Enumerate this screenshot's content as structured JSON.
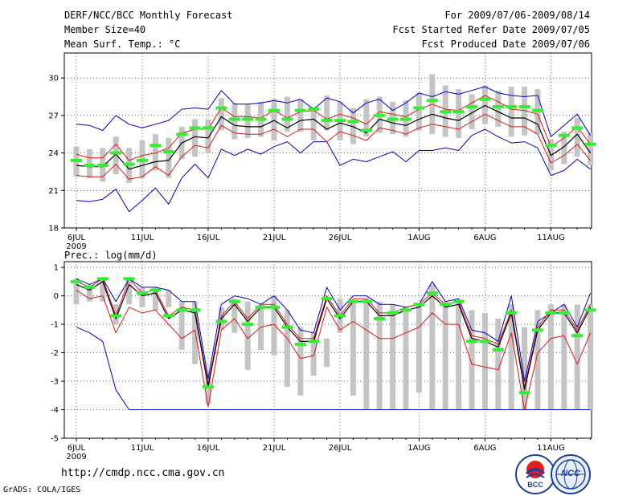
{
  "header": {
    "title": "DERF/NCC/BCC Monthly Forecast",
    "member_size": "Member Size=40",
    "variable": "Mean Surf. Temp.: °C",
    "period": "For 2009/07/06-2009/08/14",
    "started": "Fcst Started Refer Date 2009/07/05",
    "produced": "Fcst Produced Date 2009/07/06"
  },
  "lower_title": "Prec.: log(mm/d)",
  "url": "http://cmdp.ncc.cma.gov.cn",
  "credit": "GrADS: COLA/IGES",
  "logos": {
    "bcc": "BCC",
    "ncc": "NCC"
  },
  "colors": {
    "bar": "#c4c4c4",
    "green": "#33ee33",
    "mean": "#000000",
    "red": "#d81818",
    "blue": "#0000c8"
  },
  "chart_data": [
    {
      "type": "line",
      "title": "Mean Surf. Temp.: °C",
      "xlabel": "",
      "ylabel": "°C",
      "ylim": [
        18,
        32
      ],
      "yticks": [
        18,
        21,
        24,
        27,
        30
      ],
      "x": [
        1,
        2,
        3,
        4,
        5,
        6,
        7,
        8,
        9,
        10,
        11,
        12,
        13,
        14,
        15,
        16,
        17,
        18,
        19,
        20,
        21,
        22,
        23,
        24,
        25,
        26,
        27,
        28,
        29,
        30,
        31,
        32,
        33,
        34,
        35,
        36,
        37,
        38,
        39,
        40
      ],
      "xticks": [
        {
          "day": 1,
          "label": "6JUL",
          "sub": "2009"
        },
        {
          "day": 6,
          "label": "11JUL"
        },
        {
          "day": 11,
          "label": "16JUL"
        },
        {
          "day": 16,
          "label": "21JUL"
        },
        {
          "day": 21,
          "label": "26JUL"
        },
        {
          "day": 27,
          "label": "1AUG"
        },
        {
          "day": 32,
          "label": "6AUG"
        },
        {
          "day": 37,
          "label": "11AUG"
        }
      ],
      "series": [
        {
          "name": "box_low",
          "values": [
            22.1,
            22.0,
            21.7,
            22.3,
            21.6,
            22.0,
            22.6,
            22.0,
            23.5,
            23.7,
            24.0,
            25.8,
            25.1,
            25.2,
            25.3,
            25.0,
            25.7,
            25.7,
            25.0,
            25.8,
            25.0,
            24.7,
            25.3,
            25.6,
            25.5,
            25.3,
            25.8,
            25.5,
            25.3,
            25.2,
            25.9,
            26.3,
            26.1,
            25.3,
            25.4,
            25.5,
            22.6,
            23.1,
            23.7,
            23.0
          ]
        },
        {
          "name": "box_high",
          "values": [
            24.5,
            24.3,
            24.4,
            25.3,
            24.4,
            25.0,
            25.5,
            25.2,
            26.1,
            26.7,
            26.7,
            28.4,
            28.0,
            27.9,
            28.1,
            28.3,
            28.5,
            28.3,
            27.7,
            28.6,
            28.1,
            27.6,
            28.3,
            28.5,
            28.1,
            28.2,
            28.8,
            30.3,
            29.4,
            29.1,
            28.7,
            29.4,
            29.0,
            29.3,
            29.3,
            29.1,
            25.1,
            25.7,
            26.8,
            25.6
          ]
        },
        {
          "name": "observed",
          "values": [
            23.4,
            23.0,
            23.0,
            24.0,
            23.1,
            23.4,
            24.6,
            24.1,
            25.5,
            26.0,
            26.0,
            27.6,
            26.7,
            26.7,
            26.7,
            27.4,
            26.7,
            27.4,
            27.5,
            26.6,
            26.6,
            26.5,
            25.8,
            27.0,
            26.7,
            26.7,
            27.6,
            28.2,
            27.3,
            27.3,
            27.7,
            28.3,
            27.7,
            27.7,
            27.7,
            27.4,
            24.6,
            25.4,
            26.0,
            24.7
          ]
        },
        {
          "name": "ensemble_mean",
          "values": [
            23.0,
            22.9,
            22.9,
            23.9,
            22.7,
            23.0,
            23.3,
            23.4,
            24.8,
            25.3,
            25.2,
            26.9,
            26.2,
            26.1,
            26.1,
            26.6,
            26.0,
            26.6,
            26.7,
            25.9,
            26.4,
            26.1,
            25.6,
            26.7,
            26.4,
            26.2,
            26.7,
            27.1,
            26.8,
            26.6,
            27.2,
            27.8,
            27.3,
            26.8,
            26.8,
            26.3,
            23.8,
            24.5,
            25.5,
            24.0
          ]
        },
        {
          "name": "red_upper",
          "values": [
            23.9,
            23.6,
            23.6,
            24.7,
            23.4,
            23.8,
            24.0,
            24.4,
            25.6,
            25.9,
            25.9,
            27.6,
            26.9,
            26.9,
            26.8,
            27.4,
            26.8,
            27.3,
            27.4,
            26.7,
            27.1,
            26.8,
            26.3,
            27.3,
            27.1,
            26.9,
            27.5,
            27.9,
            27.5,
            27.4,
            28.0,
            28.6,
            28.1,
            27.5,
            27.4,
            27.1,
            24.5,
            25.2,
            26.1,
            24.7
          ]
        },
        {
          "name": "red_lower",
          "values": [
            22.2,
            22.1,
            22.1,
            23.1,
            21.9,
            22.1,
            22.9,
            22.2,
            23.7,
            24.6,
            24.4,
            26.2,
            25.6,
            25.5,
            25.5,
            25.9,
            25.3,
            25.9,
            25.9,
            24.9,
            25.7,
            25.4,
            25.0,
            26.0,
            25.8,
            25.5,
            26.0,
            26.3,
            26.1,
            25.9,
            26.5,
            27.1,
            26.6,
            26.1,
            26.1,
            25.5,
            23.2,
            23.8,
            24.7,
            23.4
          ]
        },
        {
          "name": "blue_max",
          "values": [
            26.3,
            26.2,
            25.8,
            27.0,
            26.3,
            26.0,
            26.3,
            26.6,
            27.5,
            27.6,
            27.5,
            29.0,
            27.9,
            27.9,
            28.0,
            28.2,
            28.0,
            28.3,
            27.5,
            28.4,
            28.1,
            27.2,
            28.0,
            28.3,
            27.4,
            28.0,
            28.8,
            28.5,
            28.9,
            28.7,
            29.0,
            29.3,
            28.8,
            28.6,
            28.5,
            28.6,
            25.3,
            26.2,
            27.1,
            25.4
          ]
        },
        {
          "name": "blue_min",
          "values": [
            20.2,
            20.1,
            20.3,
            21.1,
            19.3,
            20.2,
            21.2,
            19.9,
            22.0,
            23.1,
            22.0,
            24.3,
            23.8,
            24.3,
            23.9,
            24.5,
            24.9,
            24.0,
            24.9,
            24.9,
            23.0,
            23.5,
            23.3,
            23.7,
            24.1,
            23.3,
            24.2,
            24.2,
            24.4,
            24.2,
            25.4,
            25.9,
            25.3,
            24.8,
            24.9,
            24.4,
            22.2,
            22.6,
            23.5,
            22.7
          ]
        }
      ]
    },
    {
      "type": "line",
      "title": "Prec.: log(mm/d)",
      "xlabel": "",
      "ylabel": "log(mm/d)",
      "ylim": [
        -5,
        1.2
      ],
      "yticks": [
        -5,
        -4,
        -3,
        -2,
        -1,
        0,
        1
      ],
      "x": [
        1,
        2,
        3,
        4,
        5,
        6,
        7,
        8,
        9,
        10,
        11,
        12,
        13,
        14,
        15,
        16,
        17,
        18,
        19,
        20,
        21,
        22,
        23,
        24,
        25,
        26,
        27,
        28,
        29,
        30,
        31,
        32,
        33,
        34,
        35,
        36,
        37,
        38,
        39,
        40
      ],
      "xticks": [
        {
          "day": 1,
          "label": "6JUL",
          "sub": "2009"
        },
        {
          "day": 6,
          "label": "11JUL"
        },
        {
          "day": 11,
          "label": "16JUL"
        },
        {
          "day": 16,
          "label": "21JUL"
        },
        {
          "day": 21,
          "label": "26JUL"
        },
        {
          "day": 27,
          "label": "1AUG"
        },
        {
          "day": 32,
          "label": "6AUG"
        },
        {
          "day": 37,
          "label": "11AUG"
        }
      ],
      "series": [
        {
          "name": "box_low",
          "values": [
            -0.3,
            -0.2,
            -0.2,
            -1.0,
            -0.3,
            -0.4,
            -0.5,
            -0.4,
            -1.9,
            -2.4,
            -3.8,
            -1.2,
            -1.3,
            -2.6,
            -1.9,
            -2.1,
            -3.2,
            -3.5,
            -2.8,
            -2.5,
            -1.3,
            -3.5,
            -4.0,
            -4.0,
            -4.0,
            -4.0,
            -3.4,
            -4.0,
            -4.0,
            -4.0,
            -4.0,
            -4.0,
            -4.0,
            -4.0,
            -4.0,
            -4.0,
            -4.0,
            -4.0,
            -4.0,
            -4.0
          ]
        },
        {
          "name": "box_high",
          "values": [
            0.6,
            0.4,
            0.6,
            -0.3,
            0.6,
            0.3,
            0.3,
            0.2,
            -0.2,
            -0.2,
            -2.7,
            -0.4,
            -0.1,
            -0.2,
            -0.3,
            0.0,
            -0.5,
            -1.1,
            -1.3,
            -1.5,
            -0.1,
            -0.2,
            -0.1,
            -0.2,
            -0.3,
            -0.4,
            -0.3,
            0.4,
            -0.2,
            -0.2,
            -0.5,
            -0.6,
            -0.8,
            -0.3,
            -1.1,
            -0.5,
            -0.3,
            -0.3,
            -0.3,
            -0.3
          ]
        },
        {
          "name": "observed",
          "values": [
            0.5,
            0.3,
            0.6,
            -0.7,
            0.6,
            0.1,
            0.2,
            -0.7,
            -0.5,
            -0.5,
            -3.2,
            -0.9,
            -0.2,
            -1.0,
            -0.4,
            -0.4,
            -1.1,
            -1.7,
            -1.6,
            -0.1,
            -0.7,
            -0.2,
            -0.2,
            -0.8,
            -0.6,
            -0.5,
            -0.3,
            0.1,
            -0.3,
            -0.2,
            -1.6,
            -1.6,
            -1.9,
            -0.6,
            -3.4,
            -1.2,
            -0.6,
            -0.6,
            -1.4,
            -0.5
          ]
        },
        {
          "name": "ensemble_mean",
          "values": [
            0.4,
            0.2,
            0.5,
            -0.8,
            0.4,
            0.0,
            0.1,
            -0.8,
            -0.5,
            -0.6,
            -3.2,
            -0.8,
            -0.3,
            -0.9,
            -0.4,
            -0.4,
            -1.1,
            -1.6,
            -1.6,
            -0.1,
            -0.8,
            -0.2,
            -0.2,
            -0.7,
            -0.7,
            -0.5,
            -0.4,
            0.0,
            -0.4,
            -0.3,
            -1.5,
            -1.6,
            -1.8,
            -0.6,
            -3.3,
            -1.2,
            -0.6,
            -0.6,
            -1.3,
            -0.4
          ]
        },
        {
          "name": "red_upper",
          "values": [
            0.5,
            0.3,
            0.6,
            -0.7,
            0.6,
            0.1,
            0.2,
            -0.7,
            -0.4,
            -0.5,
            -3.1,
            -0.7,
            -0.2,
            -0.8,
            -0.3,
            -0.3,
            -1.0,
            -1.5,
            -1.5,
            0.0,
            -0.7,
            -0.1,
            -0.1,
            -0.6,
            -0.6,
            -0.4,
            -0.3,
            0.1,
            -0.3,
            -0.2,
            -1.4,
            -1.5,
            -1.7,
            -0.5,
            -3.2,
            -1.1,
            -0.5,
            -0.5,
            -1.2,
            -0.3
          ]
        },
        {
          "name": "red_lower",
          "values": [
            0.2,
            -0.1,
            0.0,
            -1.3,
            -0.4,
            -0.6,
            -0.5,
            -1.0,
            -1.5,
            -1.2,
            -3.9,
            -1.2,
            -0.8,
            -1.5,
            -1.1,
            -1.0,
            -1.5,
            -2.2,
            -2.1,
            -0.4,
            -1.2,
            -0.9,
            -1.2,
            -1.5,
            -1.5,
            -1.3,
            -1.1,
            -0.6,
            -1.0,
            -1.0,
            -2.4,
            -2.5,
            -2.6,
            -1.3,
            -4.0,
            -2.0,
            -1.5,
            -1.4,
            -2.4,
            -1.3
          ]
        },
        {
          "name": "blue_max",
          "values": [
            0.6,
            0.4,
            0.6,
            -0.2,
            0.6,
            0.3,
            0.3,
            0.2,
            -0.2,
            -0.2,
            -2.9,
            -0.3,
            0.0,
            -0.1,
            -0.3,
            0.0,
            -0.5,
            -1.2,
            -1.3,
            0.3,
            -0.5,
            0.0,
            0.0,
            -0.3,
            -0.3,
            -0.4,
            -0.3,
            0.5,
            -0.2,
            -0.1,
            -1.2,
            -1.3,
            -1.6,
            0.0,
            -3.0,
            -0.9,
            -0.6,
            -0.3,
            -1.1,
            0.1
          ]
        },
        {
          "name": "blue_min",
          "values": [
            -1.1,
            -1.3,
            -1.6,
            -3.3,
            -4.0,
            -4.0,
            -4.0,
            -4.0,
            -4.0,
            -4.0,
            -4.0,
            -4.0,
            -4.0,
            -4.0,
            -4.0,
            -4.0,
            -4.0,
            -4.0,
            -4.0,
            -4.0,
            -4.0,
            -4.0,
            -4.0,
            -4.0,
            -4.0,
            -4.0,
            -4.0,
            -4.0,
            -4.0,
            -4.0,
            -4.0,
            -4.0,
            -4.0,
            -4.0,
            -4.0,
            -4.0,
            -4.0,
            -4.0,
            -4.0,
            -4.0
          ]
        }
      ]
    }
  ]
}
